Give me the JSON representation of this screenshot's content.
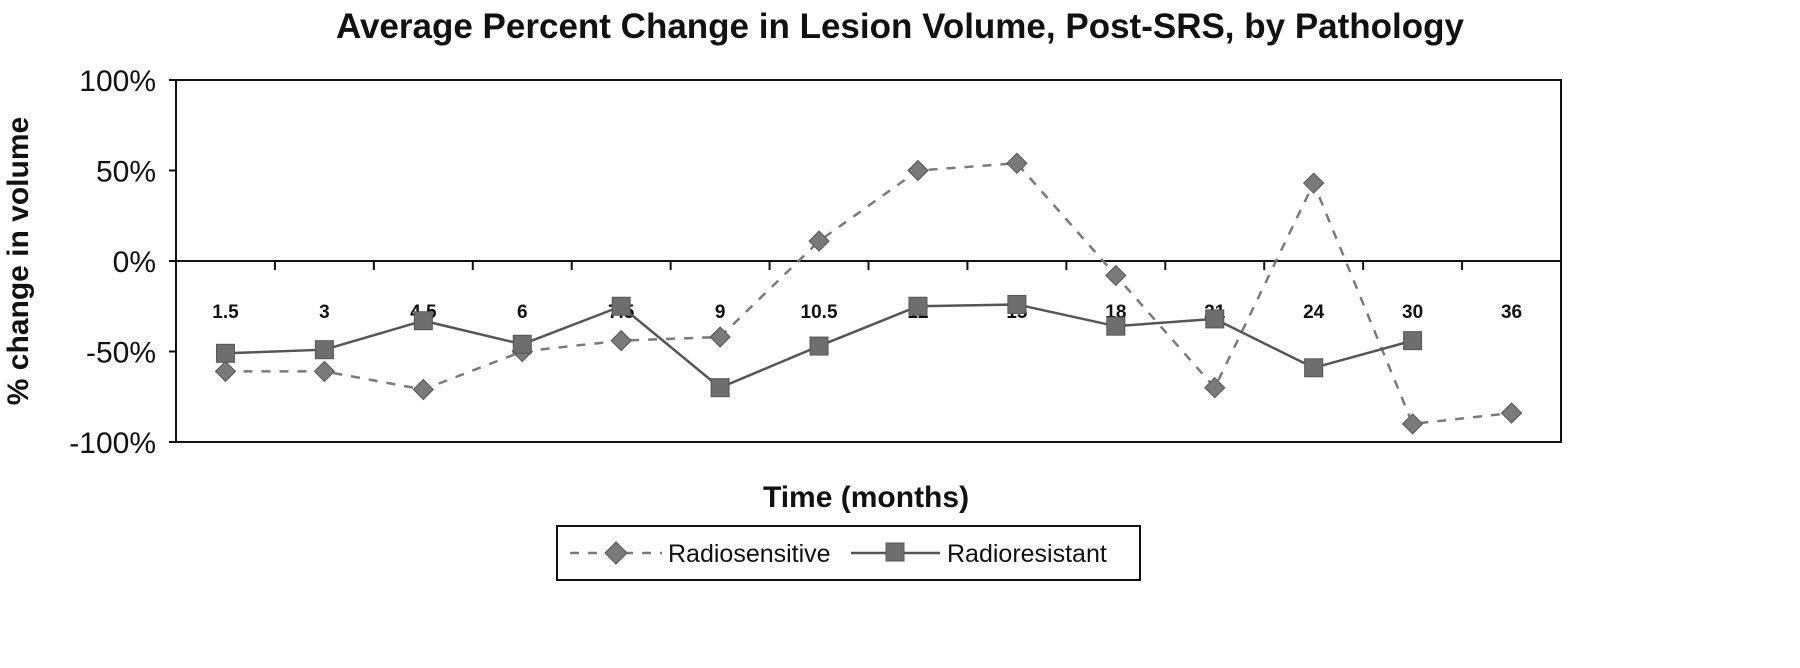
{
  "chart_data": {
    "type": "line",
    "title": "Average Percent Change in Lesion Volume, Post-SRS, by Pathology",
    "xlabel": "Time (months)",
    "ylabel": "% change in volume",
    "categories": [
      "1.5",
      "3",
      "4.5",
      "6",
      "7.5",
      "9",
      "10.5",
      "12",
      "15",
      "18",
      "21",
      "24",
      "30",
      "36"
    ],
    "ylim": [
      -100,
      100
    ],
    "yticks": [
      "100%",
      "50%",
      "0%",
      "-50%",
      "-100%"
    ],
    "ytick_values": [
      100,
      50,
      0,
      -50,
      -100
    ],
    "grid": false,
    "legend_position": "bottom",
    "series": [
      {
        "name": "Radiosensitive",
        "marker": "diamond",
        "line_style": "dashed",
        "color": "#7a7a7a",
        "values": [
          -61,
          -61,
          -71,
          -50,
          -44,
          -42,
          11,
          50,
          54,
          -8,
          -70,
          43,
          -90,
          -84
        ]
      },
      {
        "name": "Radioresistant",
        "marker": "square",
        "line_style": "solid",
        "color": "#6e6e6e",
        "values": [
          -51,
          -49,
          -33,
          -46,
          -25,
          -70,
          -47,
          -25,
          -24,
          -36,
          -32,
          -59,
          -44,
          null
        ]
      }
    ]
  }
}
